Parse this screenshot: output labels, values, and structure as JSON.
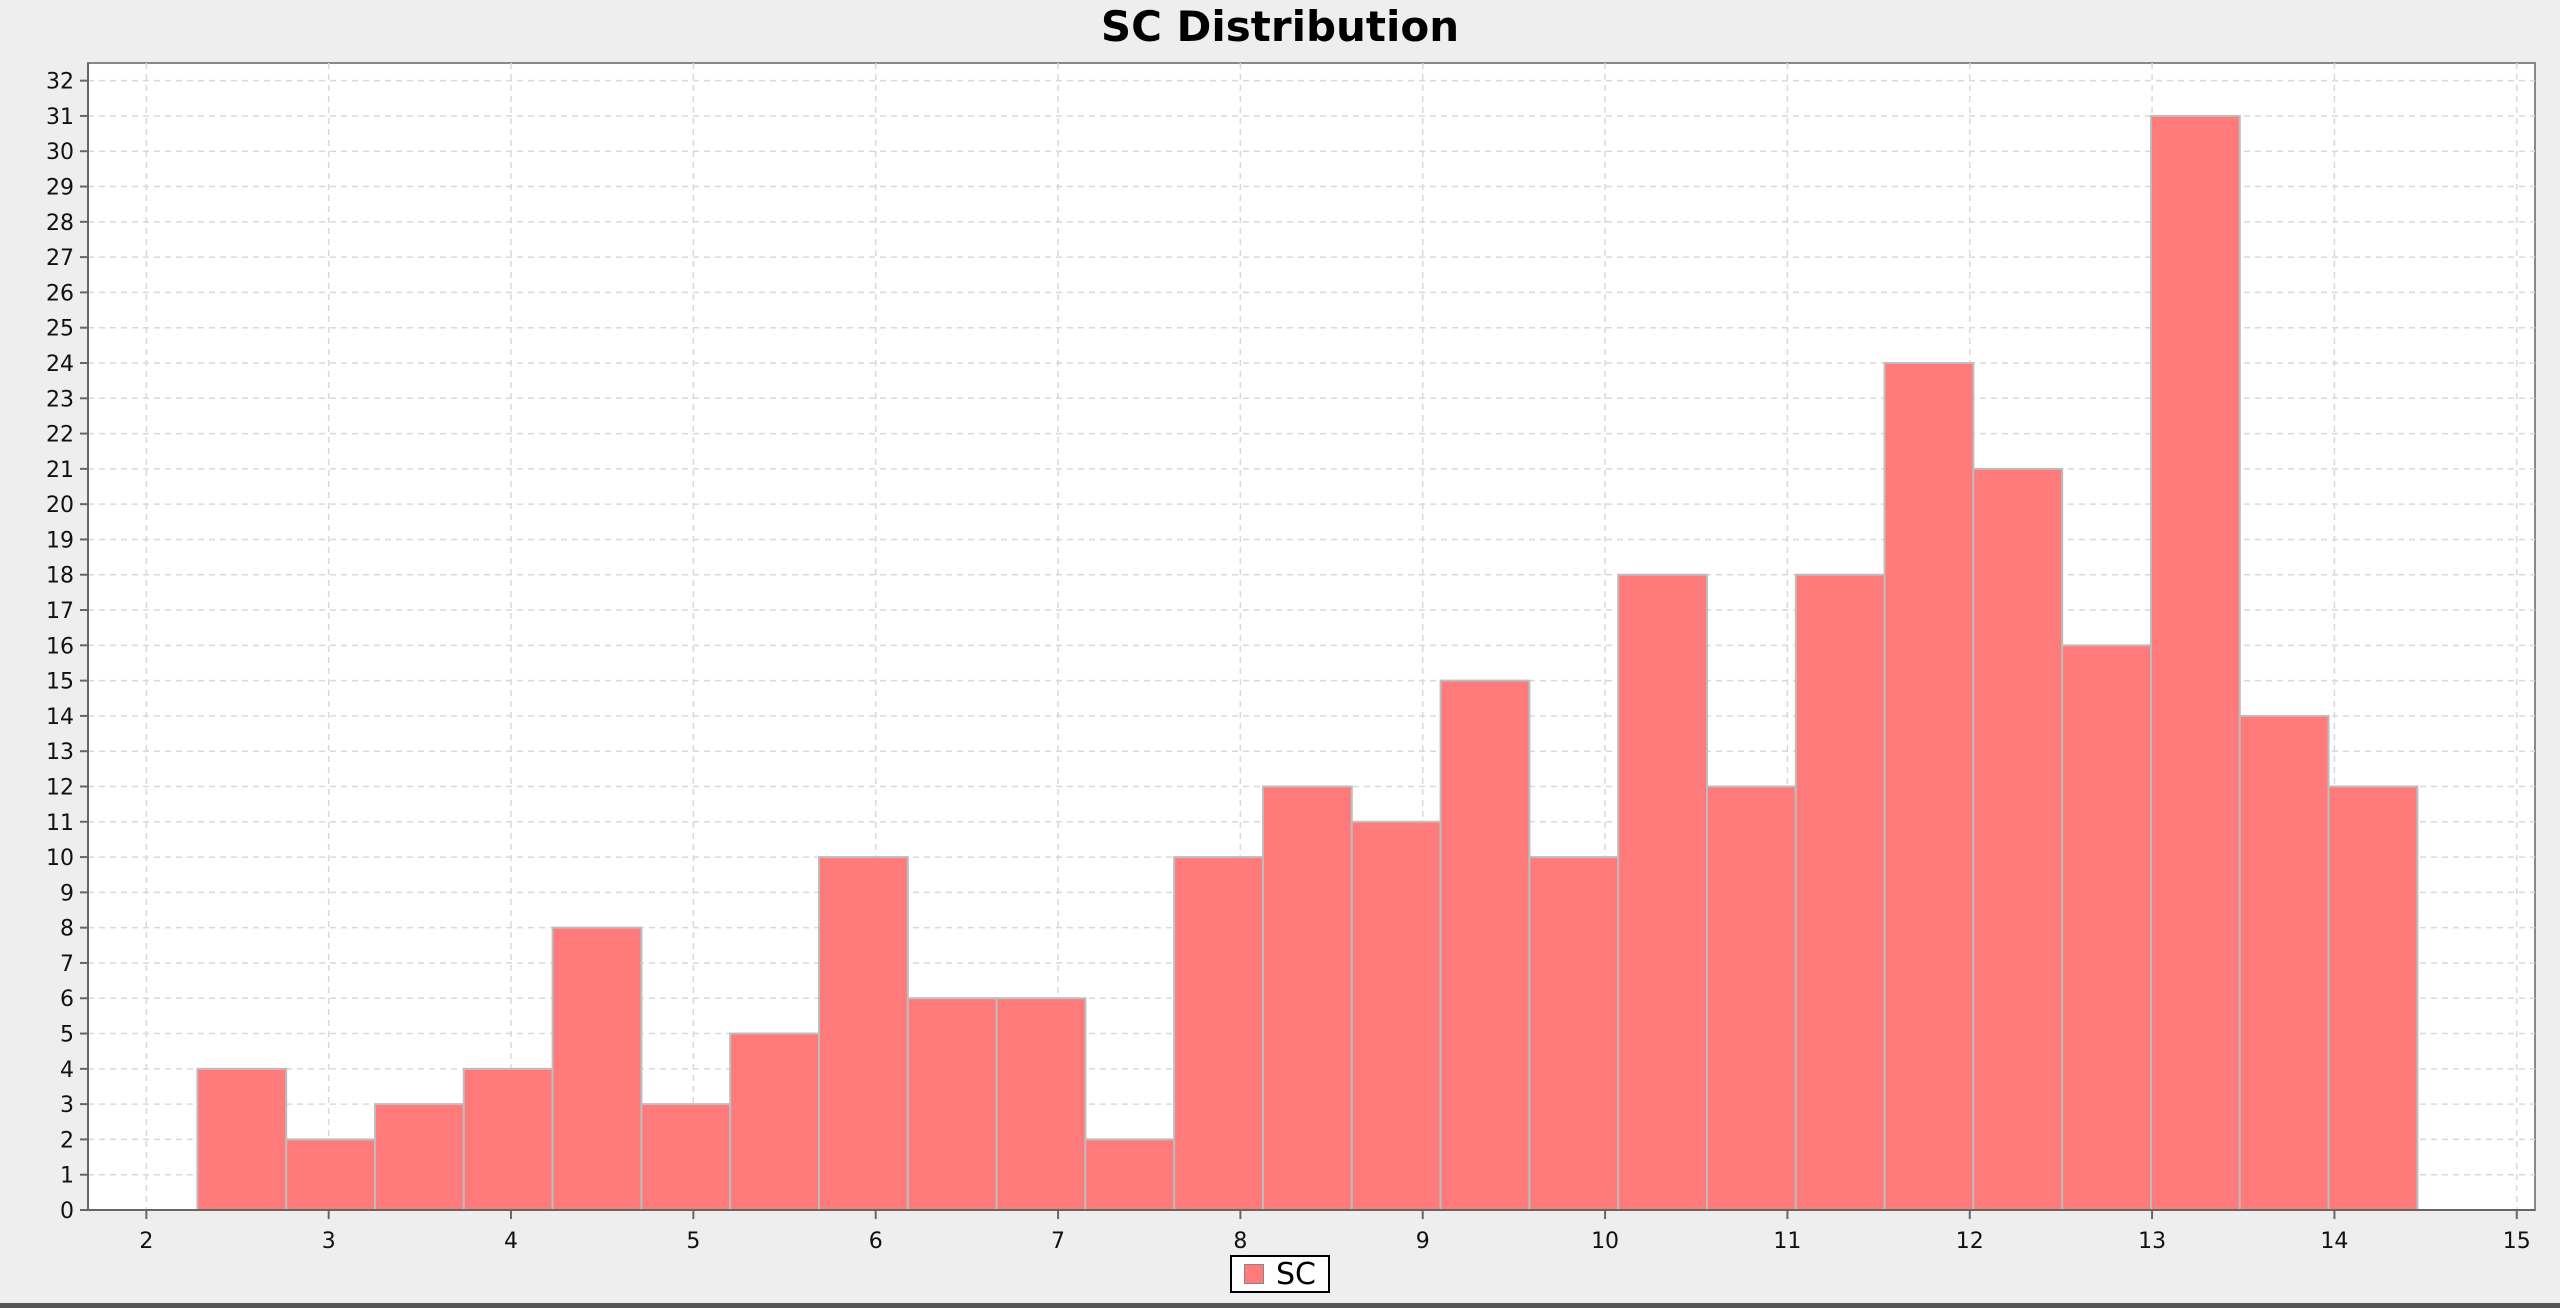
{
  "chart_data": {
    "type": "bar",
    "title": "SC Distribution",
    "xlabel": "",
    "ylabel": "",
    "xlim": [
      1.68,
      15.1
    ],
    "ylim": [
      0,
      32.5
    ],
    "x_ticks": [
      2,
      3,
      4,
      5,
      6,
      7,
      8,
      9,
      10,
      11,
      12,
      13,
      14,
      15
    ],
    "y_ticks": [
      0,
      1,
      2,
      3,
      4,
      5,
      6,
      7,
      8,
      9,
      10,
      11,
      12,
      13,
      14,
      15,
      16,
      17,
      18,
      19,
      20,
      21,
      22,
      23,
      24,
      25,
      26,
      27,
      28,
      29,
      30,
      31,
      32
    ],
    "bin_width": 0.487,
    "bin_start": 2.28,
    "values": [
      4,
      2,
      3,
      4,
      8,
      3,
      5,
      10,
      6,
      6,
      2,
      10,
      12,
      11,
      15,
      10,
      18,
      12,
      18,
      24,
      21,
      16,
      31,
      14,
      12
    ],
    "grid": true,
    "legend_position": "bottom-center",
    "series": [
      {
        "name": "SC",
        "color": "#ff7a7a"
      }
    ]
  }
}
